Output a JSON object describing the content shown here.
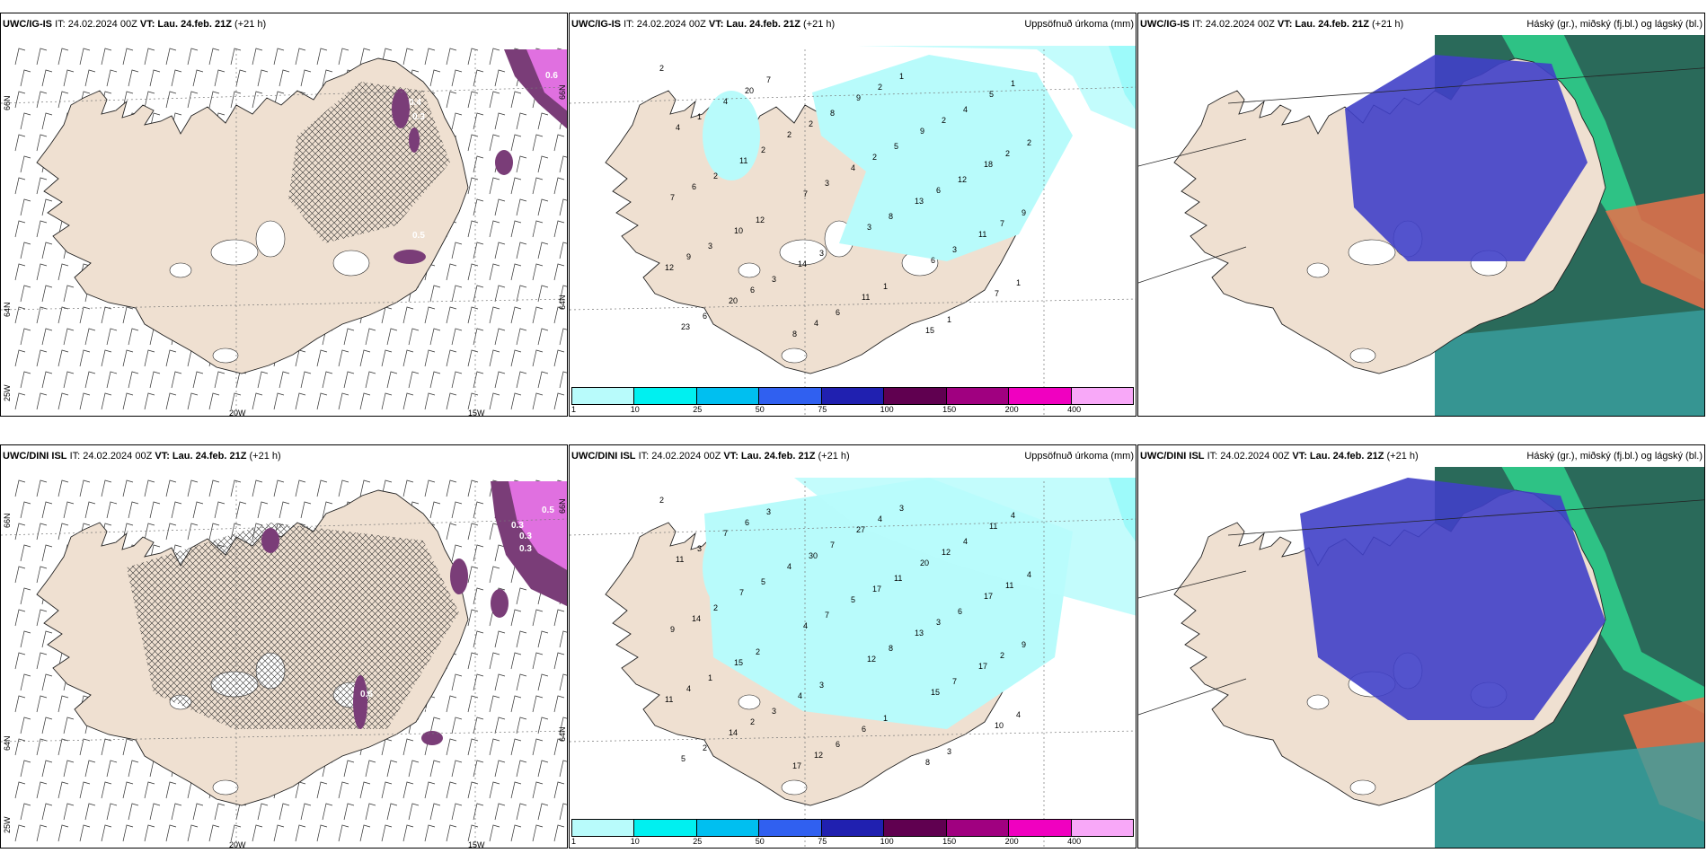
{
  "colors": {
    "land": "#efe0d1",
    "precip_light": "#b8fbfb",
    "precip_cyan": "#00f0f0",
    "snow_purple": "#7a3d78",
    "snow_pink": "#e070e0",
    "cloud_blue": "#4040c8",
    "cloud_green": "#2a6a5a"
  },
  "rows": [
    {
      "wind_panel": {
        "model": "UWC/IG-IS",
        "it_text": "IT: 24.02.2024 00Z",
        "vt_label": "VT:",
        "vt_value": "Lau. 24.feb. 21Z",
        "lead": "(+21 h)",
        "lon_labels": [
          "20W",
          "15W"
        ],
        "lat_labels": [
          "66N",
          "64N",
          "25W",
          "66N",
          "64N"
        ],
        "contour_labels": [
          "0.6",
          "0.4",
          "0.3",
          "0.5"
        ]
      },
      "precip_panel": {
        "model": "UWC/IG-IS",
        "it_text": "IT: 24.02.2024 00Z",
        "vt_label": "VT:",
        "vt_value": "Lau. 24.feb. 21Z",
        "lead": "(+21 h)",
        "title": "Uppsöfnuð úrkoma (mm)",
        "colorbar_ticks": [
          "1",
          "10",
          "25",
          "50",
          "75",
          "100",
          "150",
          "200",
          "400"
        ],
        "numbers": [
          "2",
          "4",
          "2",
          "4",
          "13",
          "11",
          "12",
          "20",
          "8",
          "9",
          "9",
          "18",
          "7",
          "10",
          "14",
          "11",
          "15",
          "5",
          "4",
          "11",
          "7",
          "3",
          "6",
          "7",
          "23",
          "20",
          "2",
          "2",
          "6",
          "7",
          "9",
          "6",
          "4",
          "2",
          "2",
          "2",
          "6",
          "12",
          "3",
          "1",
          "1",
          "1",
          "1",
          "2",
          "3",
          "8",
          "3",
          "1",
          "6",
          "7",
          "8",
          "5",
          "12",
          "9",
          "3",
          "3",
          "6",
          "1",
          "4",
          "2",
          "2"
        ]
      },
      "cloud_panel": {
        "model": "UWC/IG-IS",
        "it_text": "IT: 24.02.2024 00Z",
        "vt_label": "VT:",
        "vt_value": "Lau. 24.feb. 21Z",
        "lead": "(+21 h)",
        "title": "Háský (gr.), miðský (fj.bl.) og lágský (bl.)"
      }
    },
    {
      "wind_panel": {
        "model": "UWC/DINI ISL",
        "it_text": "IT: 24.02.2024 00Z",
        "vt_label": "VT:",
        "vt_value": "Lau. 24.feb. 21Z",
        "lead": "(+21 h)",
        "lon_labels": [
          "20W",
          "15W"
        ],
        "lat_labels": [
          "66N",
          "64N",
          "25W",
          "66N",
          "64N"
        ],
        "contour_labels": [
          "0.5",
          "0.3",
          "0.3",
          "0.3",
          "0.4",
          "0.6"
        ]
      },
      "precip_panel": {
        "model": "UWC/DINI ISL",
        "it_text": "IT: 24.02.2024 00Z",
        "vt_label": "VT:",
        "vt_value": "Lau. 24.feb. 21Z",
        "lead": "(+21 h)",
        "title": "Uppsöfnuð úrkoma (mm)",
        "colorbar_ticks": [
          "1",
          "10",
          "25",
          "50",
          "75",
          "100",
          "150",
          "200",
          "400"
        ],
        "numbers": [
          "2",
          "7",
          "4",
          "5",
          "13",
          "17",
          "11",
          "14",
          "17",
          "27",
          "20",
          "17",
          "9",
          "15",
          "4",
          "6",
          "8",
          "11",
          "11",
          "7",
          "4",
          "12",
          "15",
          "10",
          "5",
          "6",
          "30",
          "17",
          "3",
          "2",
          "4",
          "2",
          "12",
          "4",
          "12",
          "11",
          "14",
          "2",
          "3",
          "1",
          "3",
          "4",
          "3",
          "5",
          "7",
          "8",
          "7",
          "4",
          "2",
          "3",
          "7",
          "11",
          "6",
          "9",
          "1",
          "3",
          "6",
          "3",
          "4",
          "4",
          "2"
        ]
      },
      "cloud_panel": {
        "model": "UWC/DINI ISL",
        "it_text": "IT: 24.02.2024 00Z",
        "vt_label": "VT:",
        "vt_value": "Lau. 24.feb. 21Z",
        "lead": "(+21 h)",
        "title": "Háský (gr.), miðský (fj.bl.) og lágský (bl.)"
      }
    }
  ]
}
